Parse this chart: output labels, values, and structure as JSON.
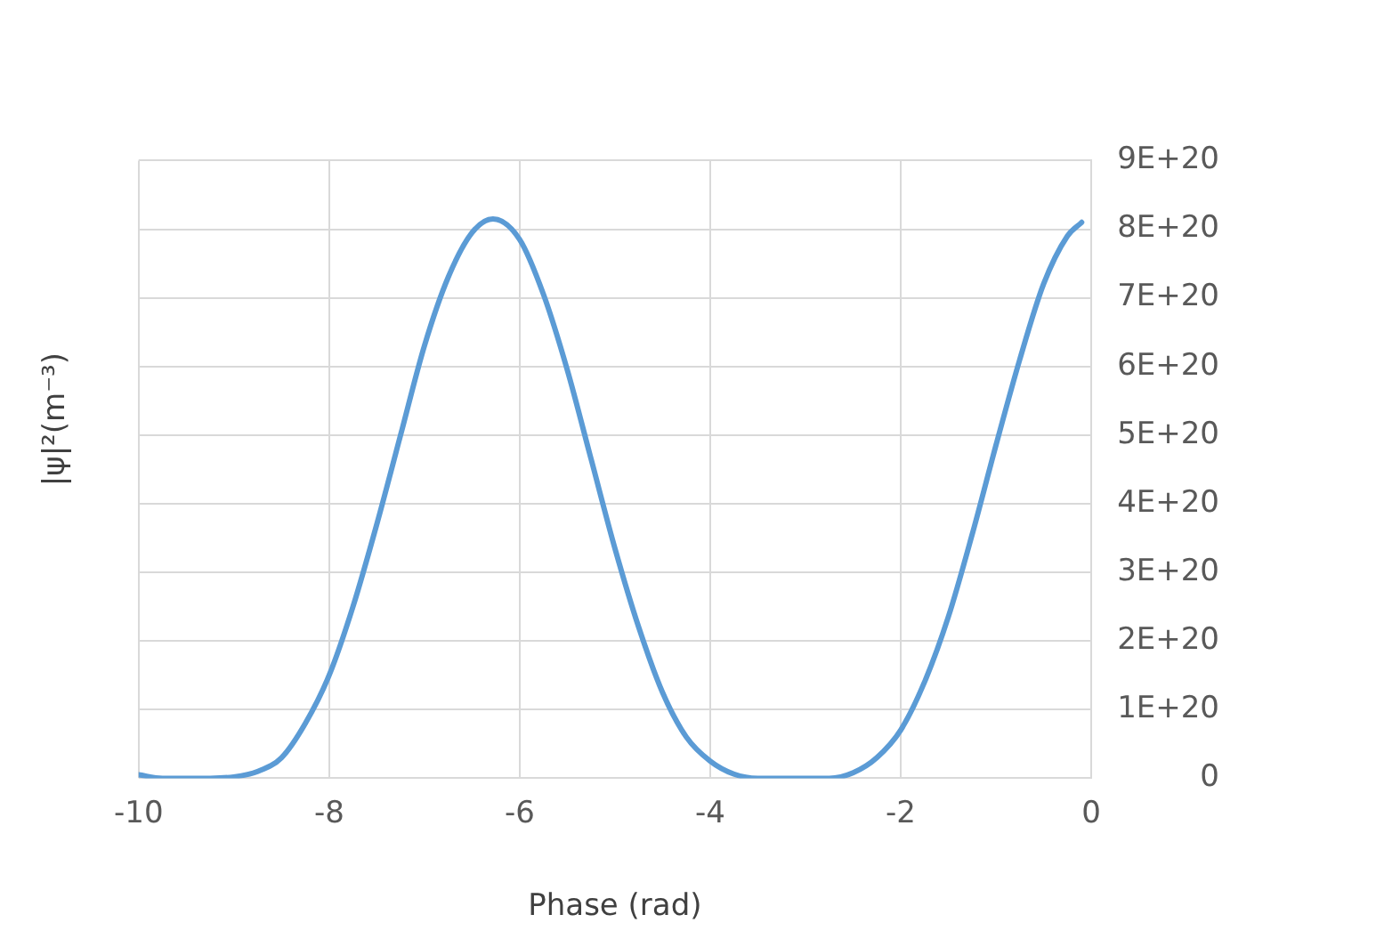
{
  "chart_data": {
    "type": "line",
    "xlabel": "Phase (rad)",
    "ylabel": "|ψ|²(m⁻³)",
    "x": [
      -10,
      -9.75,
      -9.5,
      -9.25,
      -9,
      -8.75,
      -8.5,
      -8.25,
      -8,
      -7.75,
      -7.5,
      -7.25,
      -7,
      -6.75,
      -6.5,
      -6.28,
      -6,
      -5.75,
      -5.5,
      -5.25,
      -5,
      -4.75,
      -4.5,
      -4.25,
      -4,
      -3.75,
      -3.5,
      -3.25,
      -3,
      -2.75,
      -2.5,
      -2.25,
      -2,
      -1.75,
      -1.5,
      -1.25,
      -1,
      -0.75,
      -0.5,
      -0.25,
      -0.1
    ],
    "series": [
      {
        "color": "#5b9bd5",
        "values": [
          5e+18,
          0,
          0,
          0,
          2e+18,
          1e+19,
          3e+19,
          8e+19,
          1.5e+20,
          2.5e+20,
          3.7e+20,
          5e+20,
          6.3e+20,
          7.3e+20,
          7.95e+20,
          8.15e+20,
          7.85e+20,
          7.05e+20,
          5.95e+20,
          4.65e+20,
          3.35e+20,
          2.2e+20,
          1.25e+20,
          6e+19,
          2.5e+19,
          6e+18,
          0,
          0,
          0,
          0,
          8e+18,
          3e+19,
          7e+19,
          1.4e+20,
          2.35e+20,
          3.55e+20,
          4.85e+20,
          6.1e+20,
          7.2e+20,
          7.9e+20,
          8.1e+20
        ]
      }
    ],
    "xlim": [
      -10,
      0
    ],
    "xticks": [
      -10,
      -8,
      -6,
      -4,
      -2,
      0
    ],
    "ylim": [
      0,
      9e+20
    ],
    "yticks": [
      0,
      {
        "value": 1e+20,
        "label": "1E+20"
      },
      {
        "value": 2e+20,
        "label": "2E+20"
      },
      {
        "value": 3e+20,
        "label": "3E+20"
      },
      {
        "value": 4e+20,
        "label": "4E+20"
      },
      {
        "value": 5e+20,
        "label": "5E+20"
      },
      {
        "value": 6e+20,
        "label": "6E+20"
      },
      {
        "value": 7e+20,
        "label": "7E+20"
      },
      {
        "value": 8e+20,
        "label": "8E+20"
      },
      {
        "value": 9e+20,
        "label": "9E+20"
      }
    ],
    "grid": true,
    "legend": false,
    "marker": "none",
    "line_style": "solid"
  }
}
